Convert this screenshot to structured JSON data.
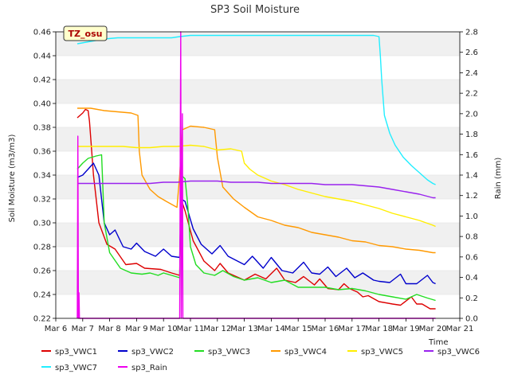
{
  "chart_data": {
    "type": "line",
    "title": "SP3 Soil Moisture",
    "xlabel": "Time",
    "ylabel": "Soil Moisture (m3/m3)",
    "y2label": "Rain (mm)",
    "site_badge": "TZ_osu",
    "x_ticks": [
      "Mar 6",
      "Mar 7",
      "Mar 8",
      "Mar 9",
      "Mar 10",
      "Mar 11",
      "Mar 12",
      "Mar 13",
      "Mar 14",
      "Mar 15",
      "Mar 16",
      "Mar 17",
      "Mar 18",
      "Mar 19",
      "Mar 20",
      "Mar 21"
    ],
    "xlim": [
      6,
      21
    ],
    "ylim": [
      0.22,
      0.46
    ],
    "y_ticks": [
      "0.22",
      "0.24",
      "0.26",
      "0.28",
      "0.30",
      "0.32",
      "0.34",
      "0.36",
      "0.38",
      "0.40",
      "0.42",
      "0.44",
      "0.46"
    ],
    "y2lim": [
      0.0,
      2.8
    ],
    "y2_ticks": [
      "0.0",
      "0.2",
      "0.4",
      "0.6",
      "0.8",
      "1.0",
      "1.2",
      "1.4",
      "1.6",
      "1.8",
      "2.0",
      "2.2",
      "2.4",
      "2.6",
      "2.8"
    ],
    "grid": "horizontal banded",
    "legend_position": "bottom",
    "series": [
      {
        "name": "sp3_VWC1",
        "color": "#dd0000",
        "axis": "left",
        "x": [
          6.8,
          7.0,
          7.1,
          7.2,
          7.25,
          7.4,
          7.6,
          7.9,
          8.2,
          8.6,
          9.0,
          9.3,
          9.9,
          10.3,
          10.6,
          10.65,
          10.8,
          11.1,
          11.5,
          11.9,
          12.1,
          12.4,
          13.0,
          13.4,
          13.8,
          14.2,
          14.5,
          14.9,
          15.2,
          15.6,
          15.8,
          16.1,
          16.5,
          16.7,
          16.9,
          17.2,
          17.4,
          17.6,
          18.0,
          18.5,
          18.8,
          19.2,
          19.4,
          19.6,
          19.9,
          20.1
        ],
        "y": [
          0.388,
          0.392,
          0.395,
          0.394,
          0.385,
          0.34,
          0.3,
          0.282,
          0.278,
          0.265,
          0.266,
          0.262,
          0.261,
          0.258,
          0.256,
          0.32,
          0.31,
          0.285,
          0.268,
          0.26,
          0.266,
          0.258,
          0.252,
          0.257,
          0.253,
          0.262,
          0.252,
          0.25,
          0.255,
          0.248,
          0.253,
          0.245,
          0.244,
          0.249,
          0.245,
          0.242,
          0.238,
          0.239,
          0.234,
          0.232,
          0.231,
          0.238,
          0.232,
          0.232,
          0.228,
          0.228
        ]
      },
      {
        "name": "sp3_VWC2",
        "color": "#0000cc",
        "axis": "left",
        "x": [
          6.8,
          7.0,
          7.2,
          7.4,
          7.6,
          7.8,
          8.0,
          8.2,
          8.5,
          8.8,
          9.0,
          9.3,
          9.7,
          10.0,
          10.3,
          10.6,
          10.65,
          10.8,
          11.1,
          11.4,
          11.8,
          12.1,
          12.4,
          13.0,
          13.3,
          13.7,
          14.0,
          14.4,
          14.8,
          15.2,
          15.5,
          15.8,
          16.1,
          16.4,
          16.8,
          17.1,
          17.4,
          17.8,
          18.0,
          18.4,
          18.8,
          19.0,
          19.4,
          19.8,
          20.0,
          20.1
        ],
        "y": [
          0.338,
          0.34,
          0.345,
          0.35,
          0.34,
          0.3,
          0.29,
          0.294,
          0.28,
          0.278,
          0.283,
          0.276,
          0.272,
          0.278,
          0.272,
          0.271,
          0.32,
          0.318,
          0.295,
          0.282,
          0.274,
          0.281,
          0.272,
          0.265,
          0.272,
          0.262,
          0.271,
          0.26,
          0.258,
          0.267,
          0.258,
          0.257,
          0.263,
          0.255,
          0.262,
          0.254,
          0.258,
          0.252,
          0.251,
          0.25,
          0.257,
          0.249,
          0.249,
          0.256,
          0.25,
          0.249
        ]
      },
      {
        "name": "sp3_VWC3",
        "color": "#22dd22",
        "axis": "left",
        "x": [
          6.8,
          7.0,
          7.2,
          7.5,
          7.7,
          7.8,
          8.0,
          8.4,
          8.8,
          9.2,
          9.5,
          9.8,
          10.0,
          10.3,
          10.6,
          10.65,
          10.8,
          10.9,
          11.0,
          11.2,
          11.5,
          11.9,
          12.2,
          12.6,
          13.0,
          13.5,
          14.0,
          14.5,
          15.0,
          15.5,
          16.0,
          16.5,
          17.0,
          17.5,
          18.0,
          18.5,
          19.0,
          19.4,
          19.8,
          20.1
        ],
        "y": [
          0.345,
          0.35,
          0.354,
          0.356,
          0.357,
          0.3,
          0.275,
          0.262,
          0.258,
          0.257,
          0.258,
          0.256,
          0.258,
          0.256,
          0.254,
          0.34,
          0.337,
          0.315,
          0.28,
          0.265,
          0.258,
          0.256,
          0.26,
          0.255,
          0.252,
          0.254,
          0.25,
          0.252,
          0.246,
          0.246,
          0.246,
          0.244,
          0.245,
          0.243,
          0.24,
          0.238,
          0.236,
          0.24,
          0.237,
          0.235
        ]
      },
      {
        "name": "sp3_VWC4",
        "color": "#ff9900",
        "axis": "left",
        "x": [
          6.8,
          7.3,
          7.8,
          8.3,
          8.8,
          9.05,
          9.1,
          9.2,
          9.5,
          9.8,
          10.1,
          10.5,
          10.6,
          10.7,
          11.0,
          11.5,
          11.9,
          12.0,
          12.2,
          12.6,
          13.0,
          13.5,
          14.0,
          14.5,
          15.0,
          15.5,
          16.0,
          16.5,
          17.0,
          17.5,
          18.0,
          18.5,
          19.0,
          19.5,
          20.0,
          20.1
        ],
        "y": [
          0.396,
          0.396,
          0.394,
          0.393,
          0.392,
          0.39,
          0.36,
          0.34,
          0.328,
          0.322,
          0.318,
          0.313,
          0.34,
          0.378,
          0.381,
          0.38,
          0.378,
          0.355,
          0.33,
          0.32,
          0.313,
          0.305,
          0.302,
          0.298,
          0.296,
          0.292,
          0.29,
          0.288,
          0.285,
          0.284,
          0.281,
          0.28,
          0.278,
          0.277,
          0.275,
          0.275
        ]
      },
      {
        "name": "sp3_VWC5",
        "color": "#ffee00",
        "axis": "left",
        "x": [
          6.8,
          7.5,
          8.0,
          8.5,
          9.0,
          9.5,
          10.0,
          10.5,
          11.0,
          11.5,
          12.0,
          12.5,
          12.9,
          13.0,
          13.2,
          13.5,
          14.0,
          14.5,
          15.0,
          15.5,
          16.0,
          16.5,
          17.0,
          17.5,
          18.0,
          18.5,
          19.0,
          19.5,
          20.0,
          20.1
        ],
        "y": [
          0.364,
          0.364,
          0.364,
          0.364,
          0.363,
          0.363,
          0.364,
          0.364,
          0.365,
          0.364,
          0.361,
          0.362,
          0.36,
          0.35,
          0.345,
          0.34,
          0.335,
          0.332,
          0.328,
          0.325,
          0.322,
          0.32,
          0.318,
          0.315,
          0.312,
          0.308,
          0.305,
          0.302,
          0.298,
          0.297
        ]
      },
      {
        "name": "sp3_VWC6",
        "color": "#9922ee",
        "axis": "left",
        "x": [
          6.8,
          7.5,
          8.0,
          8.5,
          9.0,
          9.5,
          10.0,
          10.5,
          11.0,
          11.5,
          12.0,
          12.5,
          13.0,
          13.5,
          14.0,
          14.5,
          15.0,
          15.5,
          16.0,
          16.5,
          17.0,
          17.5,
          18.0,
          18.5,
          19.0,
          19.5,
          20.0,
          20.1
        ],
        "y": [
          0.333,
          0.333,
          0.333,
          0.333,
          0.333,
          0.333,
          0.334,
          0.334,
          0.335,
          0.335,
          0.335,
          0.334,
          0.334,
          0.334,
          0.333,
          0.333,
          0.333,
          0.333,
          0.332,
          0.332,
          0.332,
          0.331,
          0.33,
          0.328,
          0.326,
          0.324,
          0.321,
          0.321
        ]
      },
      {
        "name": "sp3_VWC7",
        "color": "#22eeff",
        "axis": "left",
        "x": [
          6.8,
          7.3,
          7.8,
          8.3,
          8.8,
          9.3,
          9.8,
          10.3,
          10.6,
          11.0,
          11.5,
          12.0,
          12.5,
          13.0,
          13.5,
          14.0,
          14.5,
          15.0,
          15.5,
          16.0,
          16.5,
          17.0,
          17.5,
          17.8,
          18.0,
          18.05,
          18.1,
          18.2,
          18.4,
          18.6,
          18.9,
          19.2,
          19.5,
          19.8,
          20.0,
          20.1
        ],
        "y": [
          0.45,
          0.452,
          0.454,
          0.455,
          0.455,
          0.455,
          0.455,
          0.455,
          0.456,
          0.457,
          0.457,
          0.457,
          0.457,
          0.457,
          0.457,
          0.457,
          0.457,
          0.457,
          0.457,
          0.457,
          0.457,
          0.457,
          0.457,
          0.457,
          0.456,
          0.44,
          0.42,
          0.39,
          0.375,
          0.365,
          0.355,
          0.348,
          0.342,
          0.336,
          0.333,
          0.332
        ]
      },
      {
        "name": "sp3_Rain",
        "color": "#ee00ee",
        "axis": "right",
        "x": [
          6.8,
          6.82,
          6.84,
          6.86,
          6.88,
          6.9,
          6.92,
          6.95,
          7.0,
          10.5,
          10.55,
          10.6,
          10.62,
          10.64,
          10.66,
          10.7,
          10.72,
          10.75,
          10.8,
          20.1
        ],
        "y": [
          0.0,
          1.78,
          0.0,
          0.25,
          0.0,
          0.0,
          0.0,
          0.0,
          0.0,
          0.0,
          0.0,
          0.0,
          1.6,
          2.8,
          0.0,
          2.0,
          0.0,
          0.0,
          0.0,
          0.0
        ]
      }
    ]
  }
}
